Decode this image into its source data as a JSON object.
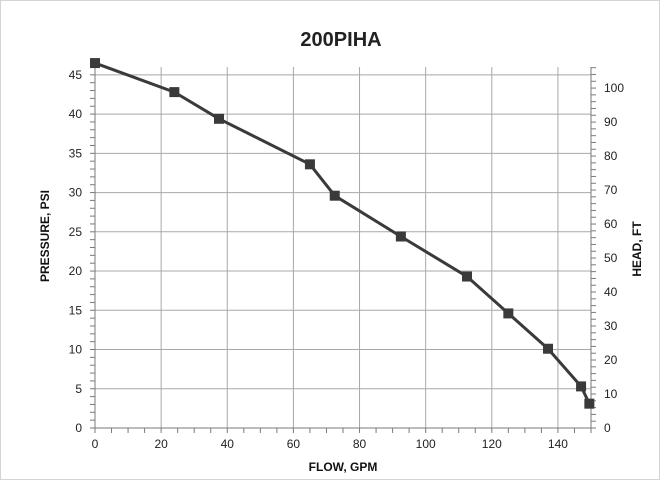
{
  "chart_data": {
    "type": "line",
    "title": "200PIHA",
    "xlabel": "FLOW, GPM",
    "ylabel": "PRESSURE, PSI",
    "y2label": "HEAD, FT",
    "xlim": [
      0,
      150
    ],
    "ylim": [
      0,
      46
    ],
    "y2lim": [
      0,
      106.2
    ],
    "x_ticks": [
      0,
      20,
      40,
      60,
      80,
      100,
      120,
      140
    ],
    "y_ticks": [
      0,
      5,
      10,
      15,
      20,
      25,
      30,
      35,
      40,
      45
    ],
    "y2_ticks": [
      0,
      10,
      20,
      30,
      40,
      50,
      60,
      70,
      80,
      90,
      100
    ],
    "grid": true,
    "legend": "none",
    "series": [
      {
        "color": "#3a3a3a",
        "marker": "square",
        "x": [
          0,
          24,
          37.5,
          65,
          72.5,
          92.5,
          112.5,
          125,
          137,
          147,
          149.5
        ],
        "y": [
          46.5,
          42.8,
          39.4,
          33.6,
          29.6,
          24.4,
          19.3,
          14.6,
          10.1,
          5.3,
          3.1
        ]
      }
    ]
  }
}
